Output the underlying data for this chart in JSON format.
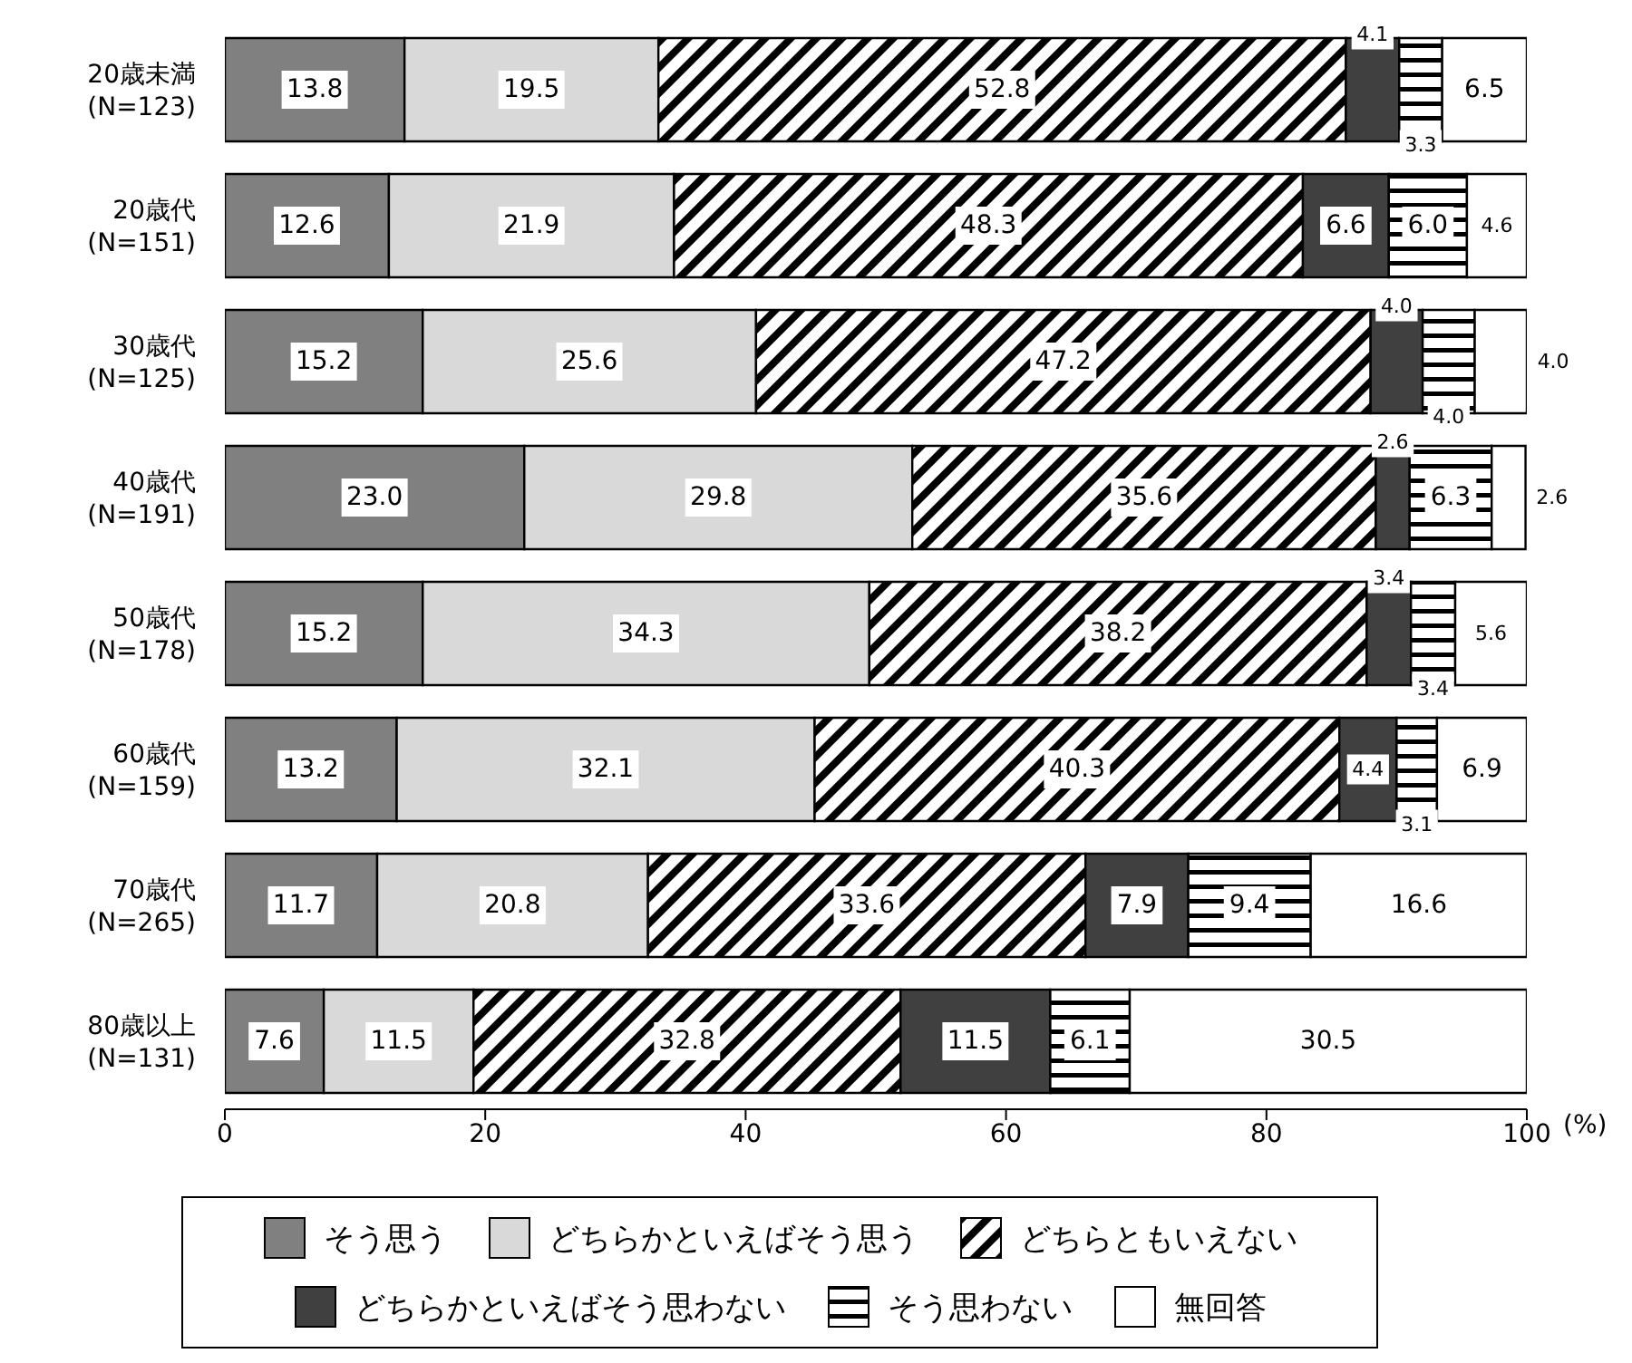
{
  "chart_data": {
    "type": "bar",
    "orientation": "horizontal",
    "stacked": true,
    "xlabel": "(%)",
    "xlim": [
      0,
      100
    ],
    "xticks": [
      0,
      20,
      40,
      60,
      80,
      100
    ],
    "grid": false,
    "legend": "bottom",
    "data_labels": true,
    "categories": [
      "20歳未満\n(N=123)",
      "20歳代\n(N=151)",
      "30歳代\n(N=125)",
      "40歳代\n(N=191)",
      "50歳代\n(N=178)",
      "60歳代\n(N=159)",
      "70歳代\n(N=265)",
      "80歳以上\n(N=131)"
    ],
    "series": [
      {
        "name": "そう思う",
        "color": "#808080",
        "values": [
          13.8,
          12.6,
          15.2,
          23.0,
          15.2,
          13.2,
          11.7,
          7.6
        ],
        "value_labels": [
          "13.8",
          "12.6",
          "15.2",
          "23.0",
          "15.2",
          "13.2",
          "11.7",
          "7.6"
        ]
      },
      {
        "name": "どちらかといえばそう思う",
        "color": "#d9d9d9",
        "values": [
          19.5,
          21.9,
          25.6,
          29.8,
          34.3,
          32.1,
          20.8,
          11.5
        ],
        "value_labels": [
          "19.5",
          "21.9",
          "25.6",
          "29.8",
          "34.3",
          "32.1",
          "20.8",
          "11.5"
        ]
      },
      {
        "name": "どちらともいえない",
        "color": "#000000",
        "values": [
          52.8,
          48.3,
          47.2,
          35.6,
          38.2,
          40.3,
          33.6,
          32.8
        ],
        "value_labels": [
          "52.8",
          "48.3",
          "47.2",
          "35.6",
          "38.2",
          "40.3",
          "33.6",
          "32.8"
        ]
      },
      {
        "name": "どちらかといえばそう思わない",
        "color": "#404040",
        "values": [
          4.1,
          6.6,
          4.0,
          2.6,
          3.4,
          4.4,
          7.9,
          11.5
        ],
        "value_labels": [
          "4.1",
          "6.6",
          "4.0",
          "2.6",
          "3.4",
          "4.4",
          "7.9",
          "11.5"
        ]
      },
      {
        "name": "そう思わない",
        "color": "#000000",
        "values": [
          3.3,
          6.0,
          4.0,
          6.3,
          3.4,
          3.1,
          9.4,
          6.1
        ],
        "value_labels": [
          "3.3",
          "6.0",
          "4.0",
          "6.3",
          "3.4",
          "3.1",
          "9.4",
          "6.1"
        ]
      },
      {
        "name": "無回答",
        "color": "#ffffff",
        "values": [
          6.5,
          4.6,
          4.0,
          2.6,
          5.6,
          6.9,
          16.6,
          30.5
        ],
        "value_labels": [
          "6.5",
          "4.6",
          "4.0",
          "2.6",
          "5.6",
          "6.9",
          "16.6",
          "30.5"
        ]
      }
    ]
  }
}
